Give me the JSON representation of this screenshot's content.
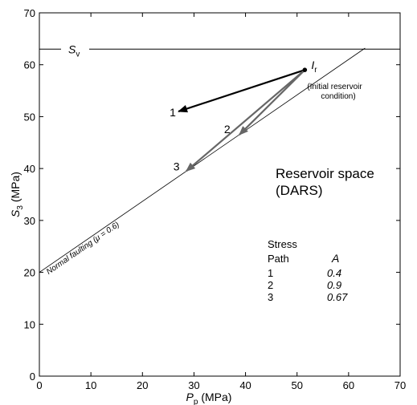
{
  "chart_data": {
    "type": "line",
    "xlabel": {
      "main": "P",
      "sub": "p",
      "unit": " (MPa)"
    },
    "ylabel": {
      "main": "S",
      "sub": "3",
      "unit": " (MPa)"
    },
    "xlim": [
      0,
      70
    ],
    "ylim": [
      0,
      70
    ],
    "xticks": [
      0,
      10,
      20,
      30,
      40,
      50,
      60,
      70
    ],
    "yticks": [
      0,
      10,
      20,
      30,
      40,
      50,
      60,
      70
    ],
    "sv": {
      "value": 63,
      "label_main": "S",
      "label_sub": "v"
    },
    "faulting_line": {
      "start": [
        0,
        20
      ],
      "end": [
        63.2,
        63.2
      ],
      "label": "Normal faulting (μ = 0.6)"
    },
    "initial_point": {
      "x": 51.5,
      "y": 59,
      "label_main": "I",
      "label_sub": "r",
      "note_line1": "(Initial reservoir",
      "note_line2": "condition)"
    },
    "paths": [
      {
        "name": "1",
        "to": [
          27,
          51
        ],
        "color": "#000000",
        "A": "0.4"
      },
      {
        "name": "2",
        "to": [
          38.8,
          46.5
        ],
        "color": "#666666",
        "A": "0.9"
      },
      {
        "name": "3",
        "to": [
          28.5,
          39.5
        ],
        "color": "#666666",
        "A": "0.67"
      }
    ],
    "region_label_line1": "Reservoir space",
    "region_label_line2": "(DARS)",
    "legend": {
      "header1": "Stress",
      "header2": "Path",
      "col_header": "A"
    }
  }
}
